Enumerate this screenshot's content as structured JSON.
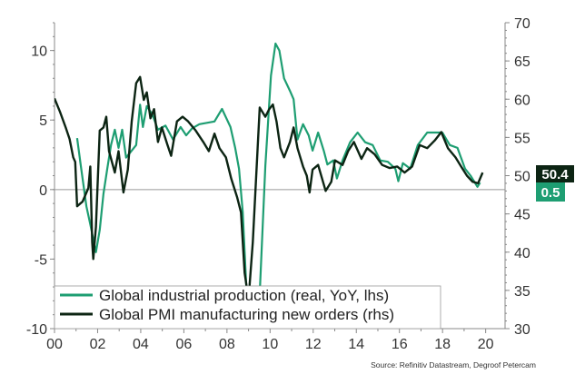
{
  "chart_data": {
    "type": "line",
    "title": "",
    "xlabel": "",
    "ylabel_left": "",
    "ylabel_right": "",
    "x_ticks": [
      "00",
      "02",
      "04",
      "06",
      "08",
      "10",
      "12",
      "14",
      "16",
      "18",
      "20"
    ],
    "x_range": [
      2000,
      2020.9
    ],
    "y_left_ticks": [
      "10",
      "5",
      "0",
      "-5",
      "-10"
    ],
    "y_left_range": [
      -10,
      12
    ],
    "y_right_ticks": [
      "70",
      "65",
      "60",
      "55",
      "50",
      "45",
      "40",
      "35",
      "30"
    ],
    "y_right_range": [
      30,
      70
    ],
    "grid": false,
    "legend_placement": "bottom-left",
    "colors": {
      "ip": "#1e9e72",
      "pmi": "#0c2413",
      "axis": "#888888"
    },
    "series": [
      {
        "name": "Global industrial production (real, YoY, lhs)",
        "axis": "left",
        "x": [
          2001.05,
          2001.22,
          2001.48,
          2001.66,
          2001.92,
          2002.1,
          2002.27,
          2002.45,
          2002.62,
          2002.8,
          2002.97,
          2003.14,
          2003.32,
          2003.58,
          2003.79,
          2003.97,
          2004.1,
          2004.28,
          2004.54,
          2004.8,
          2005.15,
          2005.5,
          2005.85,
          2006.11,
          2006.38,
          2006.72,
          2007.07,
          2007.42,
          2007.77,
          2007.95,
          2008.16,
          2008.38,
          2008.56,
          2008.73,
          2008.91,
          2009.2,
          2009.52,
          2009.78,
          2010.04,
          2010.25,
          2010.43,
          2010.65,
          2010.92,
          2011.09,
          2011.27,
          2011.53,
          2011.79,
          2011.97,
          2012.23,
          2012.49,
          2012.66,
          2012.93,
          2013.1,
          2013.36,
          2013.71,
          2014.06,
          2014.41,
          2014.76,
          2015.11,
          2015.46,
          2015.81,
          2015.95,
          2016.16,
          2016.5,
          2016.85,
          2017.29,
          2017.64,
          2017.99,
          2018.34,
          2018.69,
          2019.04,
          2019.3,
          2019.62,
          2019.74
        ],
        "y": [
          3.7,
          1.7,
          -1.2,
          -2.5,
          -4.5,
          -2.9,
          -0.3,
          1.5,
          3.2,
          4.3,
          3.0,
          4.3,
          2.3,
          2.8,
          3.2,
          6.1,
          4.5,
          6.0,
          5.4,
          4.3,
          4.6,
          3.6,
          4.5,
          3.9,
          4.4,
          4.7,
          4.8,
          4.9,
          5.8,
          5.2,
          4.5,
          3.0,
          1.5,
          -1.6,
          -7.5,
          -9.5,
          -7.5,
          1.7,
          8.2,
          10.5,
          10.0,
          8.0,
          7.1,
          6.5,
          3.6,
          4.7,
          3.9,
          2.8,
          4.1,
          2.8,
          1.8,
          2.1,
          0.8,
          2.1,
          3.4,
          4.1,
          3.4,
          3.2,
          2.1,
          2.0,
          1.5,
          0.6,
          1.9,
          1.5,
          3.2,
          4.1,
          4.1,
          4.1,
          3.2,
          3.0,
          1.5,
          1.0,
          0.2,
          0.5
        ],
        "last_value": "0.5"
      },
      {
        "name": "Global PMI manufacturing new orders (rhs)",
        "axis": "right",
        "x": [
          2000.0,
          2000.26,
          2000.52,
          2000.7,
          2000.87,
          2000.96,
          2001.05,
          2001.3,
          2001.57,
          2001.66,
          2001.75,
          2001.8,
          2001.92,
          2002.1,
          2002.27,
          2002.4,
          2002.53,
          2002.8,
          2002.97,
          2003.2,
          2003.4,
          2003.58,
          2003.79,
          2003.97,
          2004.14,
          2004.28,
          2004.45,
          2004.62,
          2004.8,
          2004.98,
          2005.24,
          2005.41,
          2005.68,
          2005.94,
          2006.2,
          2006.55,
          2006.9,
          2007.16,
          2007.42,
          2007.65,
          2007.95,
          2008.2,
          2008.47,
          2008.65,
          2008.82,
          2009.0,
          2009.2,
          2009.52,
          2009.78,
          2009.96,
          2010.13,
          2010.3,
          2010.48,
          2010.65,
          2010.92,
          2011.09,
          2011.27,
          2011.53,
          2011.7,
          2011.83,
          2011.97,
          2012.23,
          2012.58,
          2012.84,
          2013.01,
          2013.36,
          2013.62,
          2013.89,
          2014.24,
          2014.5,
          2014.85,
          2015.2,
          2015.55,
          2015.9,
          2016.24,
          2016.59,
          2016.94,
          2017.29,
          2017.64,
          2017.94,
          2018.25,
          2018.6,
          2018.86,
          2019.13,
          2019.39,
          2019.65,
          2019.86
        ],
        "y": [
          60.1,
          58.3,
          56.3,
          54.8,
          52.4,
          51.8,
          46.0,
          46.6,
          48.4,
          51.2,
          41.3,
          39.1,
          43.3,
          55.9,
          56.3,
          57.7,
          53.2,
          50.4,
          53.2,
          47.8,
          50.8,
          57.1,
          62.1,
          62.9,
          59.9,
          60.9,
          57.5,
          58.7,
          54.4,
          56.3,
          54.0,
          52.6,
          57.1,
          57.7,
          57.1,
          55.9,
          54.4,
          53.2,
          55.5,
          53.6,
          52.4,
          49.6,
          47.2,
          45.2,
          37.3,
          33.8,
          41.3,
          58.9,
          57.7,
          58.7,
          59.3,
          57.1,
          53.6,
          52.4,
          54.4,
          56.3,
          53.6,
          51.2,
          50.0,
          47.8,
          50.8,
          51.4,
          48.0,
          49.2,
          52.0,
          51.4,
          53.2,
          54.4,
          52.2,
          53.6,
          52.8,
          51.4,
          51.0,
          51.2,
          50.4,
          51.2,
          54.0,
          53.6,
          54.6,
          55.7,
          53.6,
          52.4,
          51.2,
          50.0,
          49.2,
          49.0,
          50.4
        ],
        "last_value": "50.4"
      }
    ],
    "source": "Source: Refinitiv Datastream, Degroof Petercam"
  }
}
